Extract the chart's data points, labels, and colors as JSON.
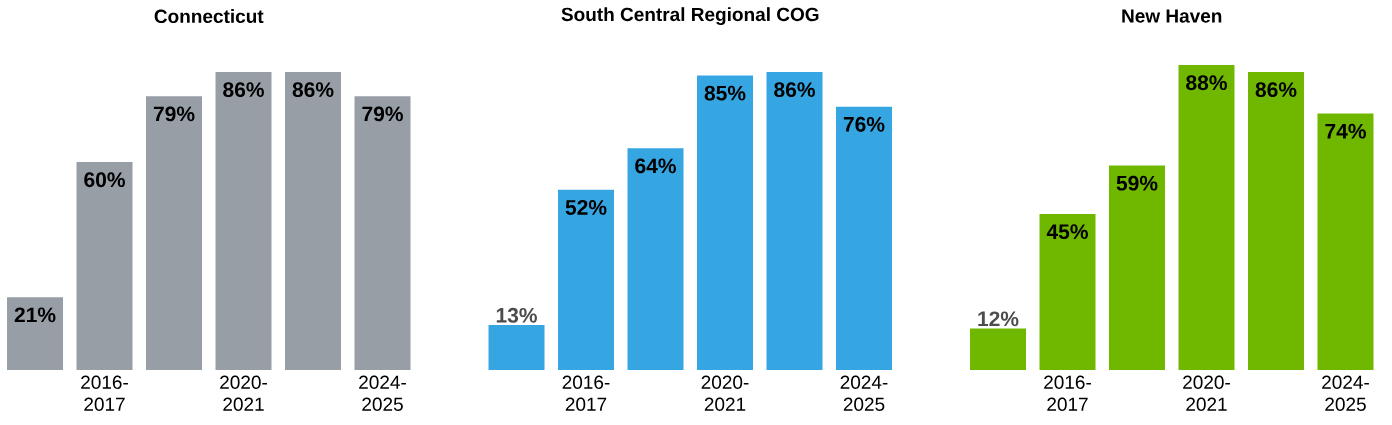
{
  "chart_data": [
    {
      "type": "bar",
      "title": "Connecticut",
      "categories": [
        null,
        "2016-2017",
        null,
        "2020-2021",
        null,
        "2024-2025"
      ],
      "values": [
        21,
        60,
        79,
        86,
        86,
        79
      ],
      "value_labels": [
        "21%",
        "60%",
        "79%",
        "86%",
        "86%",
        "79%"
      ],
      "color": "#979ea6"
    },
    {
      "type": "bar",
      "title": "South Central Regional COG",
      "categories": [
        null,
        "2016-2017",
        null,
        "2020-2021",
        null,
        "2024-2025"
      ],
      "values": [
        13,
        52,
        64,
        85,
        86,
        76
      ],
      "value_labels": [
        "13%",
        "52%",
        "64%",
        "85%",
        "86%",
        "76%"
      ],
      "color": "#36a6e3"
    },
    {
      "type": "bar",
      "title": "New Haven",
      "categories": [
        null,
        "2016-2017",
        null,
        "2020-2021",
        null,
        "2024-2025"
      ],
      "values": [
        12,
        45,
        59,
        88,
        86,
        74
      ],
      "value_labels": [
        "12%",
        "45%",
        "59%",
        "88%",
        "86%",
        "74%"
      ],
      "color": "#70b800"
    }
  ]
}
